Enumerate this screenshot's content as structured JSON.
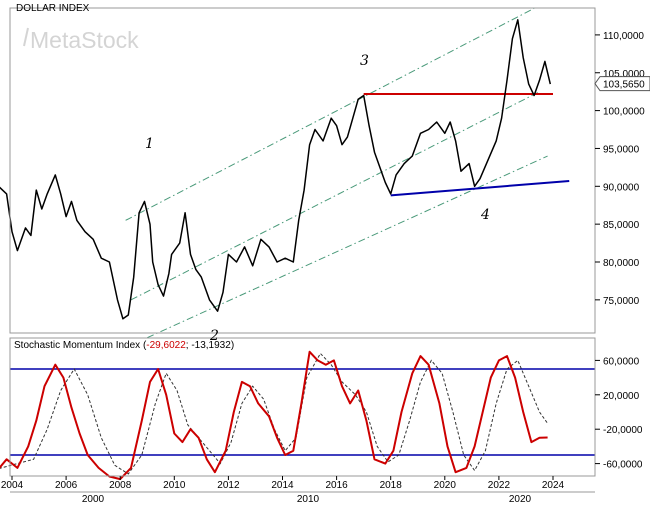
{
  "watermark": "MetaStock",
  "chart_data": [
    {
      "type": "line",
      "title": "DOLLAR INDEX",
      "last_value_label": "103,5650",
      "y_ticks": [
        "75,0000",
        "80,0000",
        "85,0000",
        "90,0000",
        "95,0000",
        "100,0000",
        "105,0000",
        "110,0000"
      ],
      "ylim": [
        71,
        113
      ],
      "wave_labels": [
        "1",
        "2",
        "3",
        "4"
      ],
      "colors": {
        "price": "#000000",
        "resistance": "#cc0000",
        "support": "#0000aa",
        "channel": "#4a9a7a"
      },
      "series": [
        {
          "x": [
            2003.0,
            2003.3,
            2003.5,
            2003.8,
            2004.0,
            2004.2,
            2004.5,
            2004.7,
            2004.9,
            2005.1,
            2005.3,
            2005.6,
            2005.8,
            2006.0,
            2006.2,
            2006.4,
            2006.7,
            2007.0,
            2007.3,
            2007.6,
            2007.9,
            2008.1,
            2008.3,
            2008.5,
            2008.7,
            2008.9,
            2009.1,
            2009.2,
            2009.4,
            2009.6,
            2009.8,
            2009.9,
            2010.2,
            2010.4,
            2010.6,
            2010.8,
            2011.0,
            2011.3,
            2011.6,
            2011.8,
            2012.0,
            2012.3,
            2012.6,
            2012.9,
            2013.2,
            2013.5,
            2013.8,
            2014.1,
            2014.4,
            2014.6,
            2014.8,
            2015.0,
            2015.2,
            2015.5,
            2015.8,
            2016.0,
            2016.2,
            2016.4,
            2016.6,
            2016.8,
            2017.0,
            2017.2,
            2017.4,
            2017.6,
            2017.8,
            2018.0,
            2018.2,
            2018.5,
            2018.8,
            2019.1,
            2019.4,
            2019.7,
            2020.0,
            2020.2,
            2020.4,
            2020.6,
            2020.9,
            2021.1,
            2021.3,
            2021.6,
            2021.9,
            2022.1,
            2022.3,
            2022.5,
            2022.7,
            2022.9,
            2023.1,
            2023.3,
            2023.5,
            2023.7,
            2023.9
          ],
          "values": [
            87.5,
            88.0,
            90.0,
            89.0,
            84.0,
            81.5,
            84.5,
            83.5,
            89.5,
            87.0,
            89.0,
            91.5,
            89.0,
            86.0,
            88.0,
            85.5,
            84.0,
            83.0,
            80.5,
            80.0,
            75.0,
            72.5,
            73.0,
            78.0,
            86.5,
            88.0,
            85.0,
            80.0,
            77.0,
            75.5,
            78.5,
            81.0,
            82.5,
            86.5,
            81.0,
            79.0,
            78.0,
            75.0,
            73.5,
            76.0,
            81.0,
            80.0,
            82.0,
            79.5,
            83.0,
            82.0,
            80.0,
            80.5,
            80.0,
            85.5,
            89.5,
            95.5,
            97.5,
            96.0,
            99.0,
            98.0,
            95.5,
            96.5,
            99.0,
            101.5,
            102.0,
            98.0,
            94.5,
            92.5,
            90.5,
            89.0,
            91.5,
            93.0,
            94.0,
            97.0,
            97.5,
            98.5,
            97.0,
            98.5,
            96.0,
            92.0,
            93.0,
            90.0,
            91.0,
            93.5,
            96.0,
            99.0,
            104.0,
            109.5,
            112.0,
            107.0,
            103.5,
            102.0,
            104.0,
            106.5,
            103.5
          ]
        }
      ]
    },
    {
      "type": "line",
      "title": "Stochastic Momentum Index (",
      "value_main": "-29,6022",
      "value_sep": "; ",
      "value_signal": "-13,1932",
      "title_close": ")",
      "y_ticks": [
        "-60,0000",
        "-20,0000",
        "20,0000",
        "60,0000"
      ],
      "ylim": [
        -83,
        85
      ],
      "levels": [
        50,
        -50
      ],
      "colors": {
        "smi": "#cc0000",
        "signal": "#333333",
        "levels": "#0000aa"
      },
      "series": [
        {
          "x": [
            2003.0,
            2003.4,
            2003.8,
            2004.2,
            2004.6,
            2004.9,
            2005.2,
            2005.6,
            2005.9,
            2006.2,
            2006.5,
            2006.8,
            2007.2,
            2007.6,
            2008.0,
            2008.4,
            2008.8,
            2009.1,
            2009.4,
            2009.7,
            2010.0,
            2010.3,
            2010.6,
            2010.9,
            2011.2,
            2011.5,
            2011.9,
            2012.2,
            2012.5,
            2012.8,
            2013.1,
            2013.5,
            2013.8,
            2014.1,
            2014.4,
            2014.7,
            2015.0,
            2015.3,
            2015.6,
            2015.9,
            2016.2,
            2016.5,
            2016.8,
            2017.1,
            2017.4,
            2017.8,
            2018.1,
            2018.4,
            2018.8,
            2019.1,
            2019.4,
            2019.8,
            2020.1,
            2020.4,
            2020.8,
            2021.1,
            2021.4,
            2021.7,
            2022.0,
            2022.3,
            2022.6,
            2022.9,
            2023.2,
            2023.5,
            2023.8
          ],
          "values": [
            -78,
            -70,
            -55,
            -65,
            -40,
            -10,
            30,
            55,
            40,
            5,
            -25,
            -50,
            -65,
            -75,
            -78,
            -65,
            -10,
            35,
            50,
            20,
            -25,
            -35,
            -20,
            -30,
            -55,
            -70,
            -45,
            0,
            35,
            30,
            10,
            -5,
            -30,
            -50,
            -45,
            10,
            70,
            60,
            55,
            60,
            30,
            10,
            25,
            -10,
            -55,
            -60,
            -45,
            0,
            45,
            65,
            55,
            10,
            -40,
            -70,
            -65,
            -40,
            0,
            40,
            60,
            65,
            40,
            0,
            -35,
            -30,
            -29.6
          ]
        },
        {
          "x": [
            2003.0,
            2003.6,
            2004.2,
            2004.8,
            2005.3,
            2005.8,
            2006.3,
            2006.8,
            2007.3,
            2007.8,
            2008.3,
            2008.8,
            2009.3,
            2009.7,
            2010.1,
            2010.5,
            2010.9,
            2011.3,
            2011.7,
            2012.1,
            2012.5,
            2012.9,
            2013.3,
            2013.7,
            2014.1,
            2014.5,
            2014.9,
            2015.4,
            2015.8,
            2016.2,
            2016.7,
            2017.1,
            2017.5,
            2017.9,
            2018.3,
            2018.7,
            2019.1,
            2019.5,
            2019.9,
            2020.3,
            2020.7,
            2021.1,
            2021.5,
            2021.9,
            2022.3,
            2022.7,
            2023.1,
            2023.5,
            2023.8
          ],
          "values": [
            -72,
            -65,
            -60,
            -55,
            -20,
            25,
            50,
            20,
            -30,
            -62,
            -72,
            -50,
            10,
            45,
            25,
            -15,
            -30,
            -45,
            -60,
            -35,
            10,
            30,
            15,
            -20,
            -45,
            -30,
            40,
            68,
            55,
            35,
            20,
            0,
            -40,
            -58,
            -50,
            -10,
            35,
            60,
            45,
            0,
            -50,
            -68,
            -45,
            10,
            50,
            60,
            30,
            0,
            -13.2
          ]
        }
      ]
    }
  ],
  "x_axis": {
    "year_ticks": [
      "2004",
      "2006",
      "2008",
      "2010",
      "2012",
      "2014",
      "2016",
      "2018",
      "2020",
      "2022",
      "2024"
    ],
    "decade_labels": [
      "2000",
      "2010",
      "2020"
    ]
  }
}
